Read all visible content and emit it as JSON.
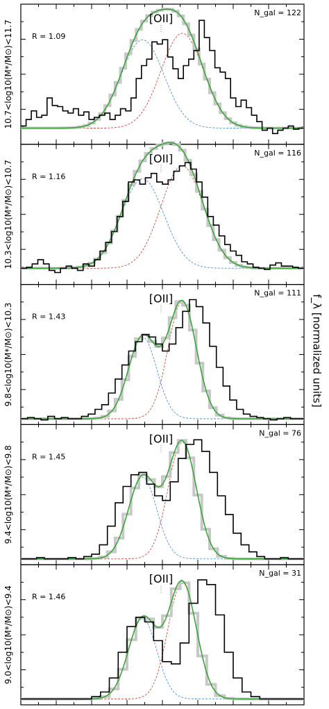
{
  "figure": {
    "right_axis_label": "f_λ [normalized units]"
  },
  "chart_data": [
    {
      "type": "line",
      "line_label": "[OII]",
      "ylabel": "10.7<log10(M*/M⊙)<11.7",
      "R_text": "R = 1.09",
      "Ngal_text": "N_gal = 122",
      "ylim": [
        -0.15,
        1.15
      ],
      "baseline": 0.0,
      "blue_peak": 0.82,
      "red_peak": 0.88,
      "series": [
        {
          "name": "data",
          "values": [
            0.02,
            0.08,
            0.16,
            0.1,
            0.12,
            0.28,
            0.21,
            0.2,
            0.16,
            0.14,
            0.18,
            0.12,
            0.15,
            0.08,
            0.1,
            0.12,
            0.14,
            0.08,
            0.12,
            0.18,
            0.16,
            0.28,
            0.46,
            0.58,
            0.64,
            0.8,
            0.78,
            0.82,
            0.66,
            0.55,
            0.46,
            0.58,
            0.64,
            0.72,
            1.0,
            0.84,
            0.72,
            0.56,
            0.52,
            0.46,
            0.28,
            0.2,
            0.26,
            0.19,
            0.12,
            0.06,
            -0.02,
            0.0,
            -0.05,
            -0.02,
            0.0,
            0.02,
            -0.01,
            0.0
          ]
        }
      ]
    },
    {
      "type": "line",
      "line_label": "[OII]",
      "ylabel": "10.3<log10(M*/M⊙)<10.7",
      "R_text": "R = 1.16",
      "Ngal_text": "N_gal = 116",
      "ylim": [
        -0.15,
        1.15
      ],
      "baseline": 0.0,
      "blue_peak": 0.83,
      "red_peak": 0.95,
      "series": [
        {
          "name": "data",
          "values": [
            0.0,
            0.01,
            0.04,
            0.08,
            0.04,
            -0.02,
            -0.04,
            0.0,
            0.02,
            0.0,
            -0.02,
            0.04,
            0.02,
            0.08,
            0.16,
            0.24,
            0.34,
            0.48,
            0.62,
            0.8,
            0.82,
            0.78,
            0.84,
            0.88,
            0.8,
            0.78,
            0.82,
            0.9,
            0.95,
            0.98,
            0.92,
            0.8,
            0.66,
            0.48,
            0.4,
            0.3,
            0.22,
            0.16,
            0.12,
            0.06,
            0.04,
            0.01,
            0.0,
            -0.01,
            0.03,
            0.05,
            0.02,
            0.02,
            0.01,
            0.0
          ]
        }
      ]
    },
    {
      "type": "line",
      "line_label": "[OII]",
      "ylabel": "9.8<log10(M*/M⊙)<10.3",
      "R_text": "R = 1.43",
      "Ngal_text": "N_gal = 111",
      "ylim": [
        -0.05,
        1.15
      ],
      "baseline": 0.0,
      "blue_peak": 0.7,
      "red_peak": 1.0,
      "series": [
        {
          "name": "data",
          "values": [
            0.0,
            0.01,
            0.0,
            -0.01,
            0.02,
            0.0,
            0.01,
            0.0,
            0.0,
            0.02,
            0.04,
            0.08,
            0.12,
            0.22,
            0.34,
            0.46,
            0.58,
            0.66,
            0.72,
            0.7,
            0.64,
            0.58,
            0.64,
            0.78,
            0.92,
            1.02,
            0.96,
            0.82,
            0.62,
            0.44,
            0.28,
            0.16,
            0.08,
            0.04,
            0.02,
            0.01,
            0.0,
            -0.01,
            0.0,
            0.01,
            0.0,
            0.0
          ]
        }
      ]
    },
    {
      "type": "line",
      "line_label": "[OII]",
      "ylabel": "9.4<log10(M*/M⊙)<9.8",
      "R_text": "R = 1.45",
      "Ngal_text": "N_gal = 76",
      "ylim": [
        -0.05,
        1.15
      ],
      "baseline": 0.0,
      "blue_peak": 0.7,
      "red_peak": 1.0,
      "series": [
        {
          "name": "data",
          "values": [
            0.0,
            0.0,
            0.01,
            0.0,
            0.0,
            0.0,
            0.01,
            0.0,
            0.02,
            0.04,
            0.12,
            0.28,
            0.48,
            0.62,
            0.72,
            0.74,
            0.64,
            0.54,
            0.5,
            0.66,
            0.86,
            0.98,
            1.02,
            0.92,
            0.74,
            0.54,
            0.38,
            0.22,
            0.12,
            0.06,
            0.02,
            0.0,
            0.0,
            0.01,
            0.0,
            0.0
          ]
        }
      ]
    },
    {
      "type": "line",
      "line_label": "[OII]",
      "ylabel": "9.0<log10(M*/M⊙)<9.4",
      "R_text": "R = 1.46",
      "Ngal_text": "N_gal = 31",
      "ylim": [
        -0.05,
        1.15
      ],
      "baseline": 0.0,
      "blue_peak": 0.69,
      "red_peak": 1.0,
      "series": [
        {
          "name": "data",
          "values": [
            0.0,
            0.0,
            0.0,
            0.0,
            0.0,
            0.0,
            0.0,
            0.0,
            0.02,
            0.06,
            0.18,
            0.4,
            0.62,
            0.7,
            0.66,
            0.5,
            0.32,
            0.3,
            0.48,
            0.82,
            1.02,
            0.98,
            0.72,
            0.4,
            0.18,
            0.06,
            0.02,
            0.0,
            0.0,
            0.0,
            0.0,
            0.0
          ]
        }
      ]
    }
  ]
}
